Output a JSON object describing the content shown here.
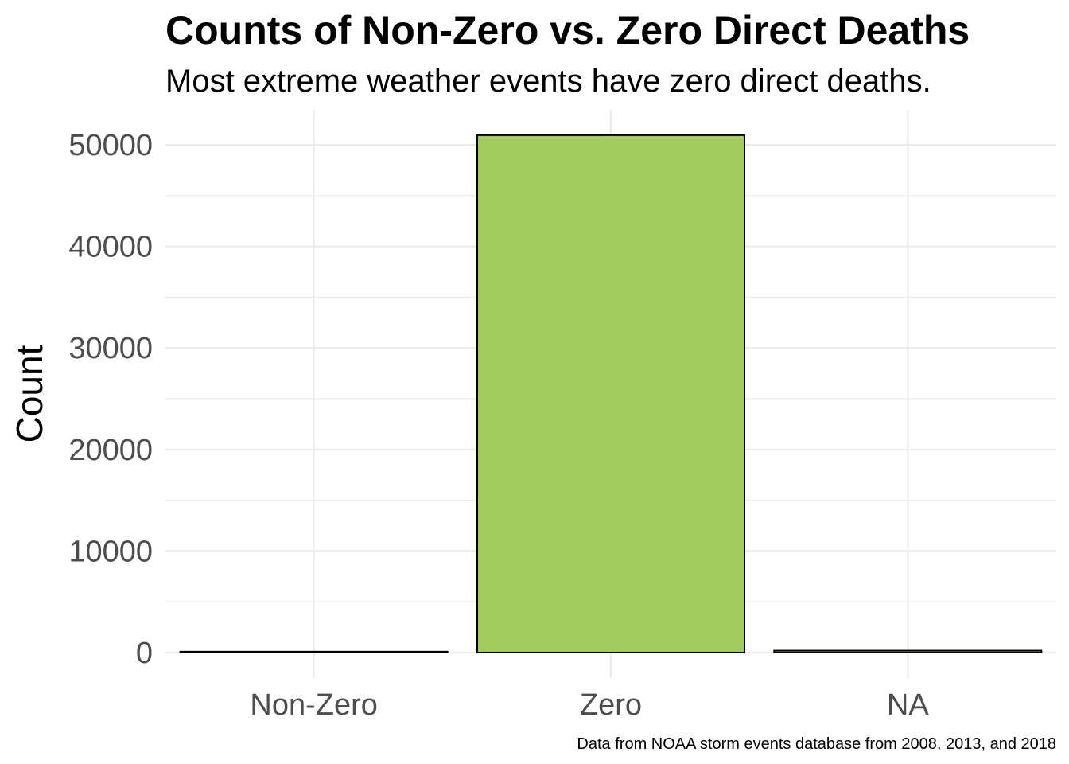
{
  "chart_data": {
    "type": "bar",
    "title": "Counts of Non-Zero vs. Zero Direct Deaths",
    "subtitle": "Most extreme weather events have zero direct deaths.",
    "xlabel": "",
    "ylabel": "Count",
    "caption": "Data from NOAA storm events database from 2008, 2013, and 2018",
    "categories": [
      "Non-Zero",
      "Zero",
      "NA"
    ],
    "values": [
      90,
      50950,
      190
    ],
    "ylim": [
      0,
      53000
    ],
    "yticks": [
      0,
      10000,
      20000,
      30000,
      40000,
      50000
    ],
    "ytick_labels": [
      "0",
      "10000",
      "20000",
      "30000",
      "40000",
      "50000"
    ],
    "bar_colors": [
      "#a3cc5e",
      "#a3cc5e",
      "#a3cc5e"
    ],
    "bar_outline": "#000000",
    "grid": true,
    "grid_color": "#ebebeb",
    "legend": "none"
  }
}
